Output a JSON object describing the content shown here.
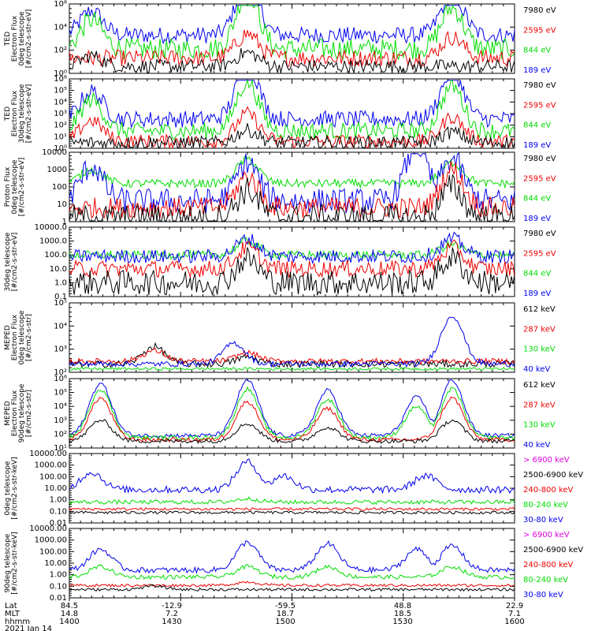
{
  "figure": {
    "footer": {
      "row_labels": [
        "Lat",
        "MLT",
        "hhmm"
      ],
      "columns": [
        {
          "lat": "84.5",
          "mlt": "14.8",
          "hhmm": "1400"
        },
        {
          "lat": "-12.9",
          "mlt": "7.2",
          "hhmm": "1430"
        },
        {
          "lat": "-59.5",
          "mlt": "18.7",
          "hhmm": "1500"
        },
        {
          "lat": "48.8",
          "mlt": "18.5",
          "hhmm": "1530"
        },
        {
          "lat": "22.9",
          "mlt": "7.1",
          "hhmm": "1600"
        }
      ],
      "date": "2021 Jan 14"
    }
  },
  "colors": {
    "black": "#000000",
    "red": "#ee0000",
    "green": "#00dd00",
    "blue": "#0000ee",
    "magenta": "#dd00dd"
  },
  "chart_data": [
    {
      "type": "line",
      "ylabel": [
        "TED",
        "Electron Flux",
        "0deg telescope",
        "[#/cm2-s-str-eV]"
      ],
      "y_ticks": [
        "10⁰",
        "10²",
        "10⁴",
        "10⁶"
      ],
      "ylim": [
        1,
        1000000
      ],
      "y_log": true,
      "xlim": [
        "1400",
        "1600"
      ],
      "legend": [
        {
          "label": "7980 eV",
          "color": "#000000"
        },
        {
          "label": "2595 eV",
          "color": "#ee0000"
        },
        {
          "label": "844 eV",
          "color": "#00dd00"
        },
        {
          "label": "189 eV",
          "color": "#0000ee"
        }
      ],
      "series": [
        {
          "color": "#0000ee",
          "floor": 0.55,
          "peaks": [
            [
              0.05,
              0.35
            ],
            [
              0.4,
              0.8
            ],
            [
              0.86,
              0.6
            ]
          ],
          "noise": 0.12
        },
        {
          "color": "#00dd00",
          "floor": 0.35,
          "peaks": [
            [
              0.05,
              0.42
            ],
            [
              0.4,
              0.85
            ],
            [
              0.86,
              0.6
            ]
          ],
          "noise": 0.15
        },
        {
          "color": "#ee0000",
          "floor": 0.22,
          "peaks": [
            [
              0.4,
              0.35
            ],
            [
              0.86,
              0.3
            ]
          ],
          "noise": 0.12
        },
        {
          "color": "#000000",
          "floor": 0.1,
          "peaks": [
            [
              0.05,
              0.15
            ],
            [
              0.4,
              0.2
            ]
          ],
          "noise": 0.1
        }
      ]
    },
    {
      "type": "line",
      "ylabel": [
        "TED",
        "Electron Flux",
        "30deg telescope",
        "[#/cm2-s-str-eV]"
      ],
      "y_ticks": [
        "10⁰",
        "10¹",
        "10²",
        "10³",
        "10⁴",
        "10⁵",
        "10⁶"
      ],
      "ylim": [
        1,
        1000000
      ],
      "y_log": true,
      "xlim": [
        "1400",
        "1600"
      ],
      "legend": [
        {
          "label": "7980 eV",
          "color": "#000000"
        },
        {
          "label": "2595 eV",
          "color": "#ee0000"
        },
        {
          "label": "844 eV",
          "color": "#00dd00"
        },
        {
          "label": "189 eV",
          "color": "#0000ee"
        }
      ],
      "series": [
        {
          "color": "#0000ee",
          "floor": 0.42,
          "peaks": [
            [
              0.05,
              0.4
            ],
            [
              0.4,
              0.8
            ],
            [
              0.86,
              0.7
            ]
          ],
          "noise": 0.12
        },
        {
          "color": "#00dd00",
          "floor": 0.25,
          "peaks": [
            [
              0.05,
              0.45
            ],
            [
              0.4,
              0.7
            ],
            [
              0.86,
              0.65
            ]
          ],
          "noise": 0.12
        },
        {
          "color": "#ee0000",
          "floor": 0.1,
          "peaks": [
            [
              0.05,
              0.3
            ],
            [
              0.4,
              0.4
            ],
            [
              0.86,
              0.35
            ]
          ],
          "noise": 0.1
        },
        {
          "color": "#000000",
          "floor": 0.08,
          "peaks": [
            [
              0.4,
              0.18
            ],
            [
              0.86,
              0.15
            ]
          ],
          "noise": 0.1
        }
      ]
    },
    {
      "type": "line",
      "ylabel": [
        "Proton Flux",
        "0deg telescope",
        "[#/cm2-s-str-eV]"
      ],
      "y_ticks": [
        "1",
        "10",
        "100",
        "1000",
        "10000"
      ],
      "ylim": [
        0.5,
        10000
      ],
      "y_log": true,
      "xlim": [
        "1400",
        "1600"
      ],
      "legend": [
        {
          "label": "7980 eV",
          "color": "#000000"
        },
        {
          "label": "2595 eV",
          "color": "#ee0000"
        },
        {
          "label": "844 eV",
          "color": "#00dd00"
        },
        {
          "label": "189 eV",
          "color": "#0000ee"
        }
      ],
      "series": [
        {
          "color": "#00dd00",
          "floor": 0.55,
          "peaks": [
            [
              0.05,
              0.2
            ],
            [
              0.4,
              0.35
            ],
            [
              0.86,
              0.3
            ]
          ],
          "noise": 0.06
        },
        {
          "color": "#0000ee",
          "floor": 0.3,
          "peaks": [
            [
              0.05,
              0.5
            ],
            [
              0.4,
              0.55
            ],
            [
              0.78,
              0.8
            ],
            [
              0.86,
              0.6
            ]
          ],
          "noise": 0.18
        },
        {
          "color": "#ee0000",
          "floor": 0.2,
          "peaks": [
            [
              0.4,
              0.45
            ],
            [
              0.86,
              0.55
            ]
          ],
          "noise": 0.15
        },
        {
          "color": "#000000",
          "floor": 0.05,
          "peaks": [
            [
              0.4,
              0.4
            ],
            [
              0.86,
              0.45
            ]
          ],
          "noise": 0.2
        }
      ]
    },
    {
      "type": "line",
      "ylabel": [
        "30deg telescope",
        "[#/cm2-s-str-eV]"
      ],
      "y_ticks": [
        "0.1",
        "1.0",
        "10.0",
        "100.0",
        "1000.0",
        "10000.0"
      ],
      "ylim": [
        0.1,
        10000
      ],
      "y_log": true,
      "xlim": [
        "1400",
        "1600"
      ],
      "legend": [
        {
          "label": "7980 eV",
          "color": "#000000"
        },
        {
          "label": "2595 eV",
          "color": "#ee0000"
        },
        {
          "label": "844 eV",
          "color": "#00dd00"
        },
        {
          "label": "189 eV",
          "color": "#0000ee"
        }
      ],
      "series": [
        {
          "color": "#00dd00",
          "floor": 0.6,
          "peaks": [
            [
              0.4,
              0.2
            ],
            [
              0.86,
              0.15
            ]
          ],
          "noise": 0.06
        },
        {
          "color": "#0000ee",
          "floor": 0.58,
          "peaks": [
            [
              0.4,
              0.25
            ],
            [
              0.86,
              0.25
            ]
          ],
          "noise": 0.1
        },
        {
          "color": "#ee0000",
          "floor": 0.4,
          "peaks": [
            [
              0.4,
              0.3
            ],
            [
              0.86,
              0.3
            ]
          ],
          "noise": 0.12
        },
        {
          "color": "#000000",
          "floor": 0.2,
          "peaks": [
            [
              0.4,
              0.35
            ],
            [
              0.86,
              0.35
            ]
          ],
          "noise": 0.18
        }
      ]
    },
    {
      "type": "line",
      "ylabel": [
        "MEPED",
        "Electron Flux",
        "0deg telescope",
        "[#/cm2-s-str]"
      ],
      "y_ticks": [
        "10²",
        "10³",
        "10⁴",
        "10⁵"
      ],
      "ylim": [
        100,
        100000
      ],
      "y_log": true,
      "xlim": [
        "1400",
        "1600"
      ],
      "legend": [
        {
          "label": "612 keV",
          "color": "#000000"
        },
        {
          "label": "287 keV",
          "color": "#ee0000"
        },
        {
          "label": "130 keV",
          "color": "#00dd00"
        },
        {
          "label": "40 keV",
          "color": "#0000ee"
        }
      ],
      "series": [
        {
          "color": "#000000",
          "floor": 0.12,
          "peaks": [
            [
              0.19,
              0.25
            ],
            [
              0.4,
              0.1
            ]
          ],
          "noise": 0.05
        },
        {
          "color": "#ee0000",
          "floor": 0.16,
          "peaks": [
            [
              0.19,
              0.15
            ],
            [
              0.4,
              0.12
            ]
          ],
          "noise": 0.04
        },
        {
          "color": "#0000ee",
          "floor": 0.12,
          "peaks": [
            [
              0.37,
              0.3
            ],
            [
              0.86,
              0.7
            ]
          ],
          "noise": 0.04
        },
        {
          "color": "#00dd00",
          "floor": 0.05,
          "peaks": [],
          "noise": 0.02
        }
      ]
    },
    {
      "type": "line",
      "ylabel": [
        "MEPED",
        "Electron Flux",
        "90deg telescope",
        "[#/cm2-s-str]"
      ],
      "y_ticks": [
        "10¹",
        "10²",
        "10³",
        "10⁴",
        "10⁵",
        "10⁶"
      ],
      "ylim": [
        10,
        1000000
      ],
      "y_log": true,
      "xlim": [
        "1400",
        "1600"
      ],
      "legend": [
        {
          "label": "612 keV",
          "color": "#000000"
        },
        {
          "label": "287 keV",
          "color": "#ee0000"
        },
        {
          "label": "130 keV",
          "color": "#00dd00"
        },
        {
          "label": "40 keV",
          "color": "#0000ee"
        }
      ],
      "series": [
        {
          "color": "#0000ee",
          "floor": 0.18,
          "peaks": [
            [
              0.07,
              0.75
            ],
            [
              0.4,
              0.8
            ],
            [
              0.58,
              0.65
            ],
            [
              0.78,
              0.55
            ],
            [
              0.86,
              0.8
            ]
          ],
          "noise": 0.03
        },
        {
          "color": "#00dd00",
          "floor": 0.15,
          "peaks": [
            [
              0.07,
              0.7
            ],
            [
              0.4,
              0.7
            ],
            [
              0.58,
              0.55
            ],
            [
              0.78,
              0.45
            ],
            [
              0.86,
              0.7
            ]
          ],
          "noise": 0.03
        },
        {
          "color": "#ee0000",
          "floor": 0.12,
          "peaks": [
            [
              0.07,
              0.6
            ],
            [
              0.4,
              0.55
            ],
            [
              0.58,
              0.45
            ],
            [
              0.86,
              0.6
            ]
          ],
          "noise": 0.03
        },
        {
          "color": "#000000",
          "floor": 0.1,
          "peaks": [
            [
              0.07,
              0.3
            ],
            [
              0.4,
              0.25
            ],
            [
              0.58,
              0.2
            ],
            [
              0.86,
              0.3
            ]
          ],
          "noise": 0.03
        }
      ]
    },
    {
      "type": "line",
      "ylabel": [
        "0deg telescope",
        "[#/cm2-s-str-keV]"
      ],
      "y_ticks": [
        "0.01",
        "0.10",
        "1.00",
        "10.00",
        "100.00",
        "1000.00",
        "10000.00"
      ],
      "ylim": [
        0.01,
        10000
      ],
      "y_log": true,
      "xlim": [
        "1400",
        "1600"
      ],
      "legend": [
        {
          "label": "> 6900 keV",
          "color": "#dd00dd"
        },
        {
          "label": "2500-6900 keV",
          "color": "#000000"
        },
        {
          "label": "240-800 keV",
          "color": "#ee0000"
        },
        {
          "label": "80-240 keV",
          "color": "#00dd00"
        },
        {
          "label": "30-80 keV",
          "color": "#0000ee"
        }
      ],
      "series": [
        {
          "color": "#0000ee",
          "floor": 0.48,
          "peaks": [
            [
              0.05,
              0.25
            ],
            [
              0.4,
              0.4
            ],
            [
              0.48,
              0.2
            ],
            [
              0.8,
              0.2
            ]
          ],
          "noise": 0.05
        },
        {
          "color": "#00dd00",
          "floor": 0.3,
          "peaks": [
            [
              0.4,
              0.05
            ]
          ],
          "noise": 0.03
        },
        {
          "color": "#ee0000",
          "floor": 0.2,
          "peaks": [],
          "noise": 0.02
        },
        {
          "color": "#000000",
          "floor": 0.15,
          "peaks": [],
          "noise": 0.02
        }
      ]
    },
    {
      "type": "line",
      "ylabel": [
        "90deg telescope",
        "[#/cm2-s-str-keV]"
      ],
      "y_ticks": [
        "0.01",
        "0.10",
        "1.00",
        "10.00",
        "100.00",
        "1000.00",
        "10000.00"
      ],
      "ylim": [
        0.01,
        10000
      ],
      "y_log": true,
      "xlim": [
        "1400",
        "1600"
      ],
      "legend": [
        {
          "label": "> 6900 keV",
          "color": "#dd00dd"
        },
        {
          "label": "2500-6900 keV",
          "color": "#000000"
        },
        {
          "label": "240-800 keV",
          "color": "#ee0000"
        },
        {
          "label": "80-240 keV",
          "color": "#00dd00"
        },
        {
          "label": "30-80 keV",
          "color": "#0000ee"
        }
      ],
      "series": [
        {
          "color": "#0000ee",
          "floor": 0.4,
          "peaks": [
            [
              0.07,
              0.3
            ],
            [
              0.4,
              0.4
            ],
            [
              0.58,
              0.38
            ],
            [
              0.78,
              0.3
            ],
            [
              0.86,
              0.35
            ]
          ],
          "noise": 0.04
        },
        {
          "color": "#00dd00",
          "floor": 0.3,
          "peaks": [
            [
              0.07,
              0.15
            ],
            [
              0.4,
              0.15
            ],
            [
              0.58,
              0.15
            ],
            [
              0.86,
              0.15
            ]
          ],
          "noise": 0.03
        },
        {
          "color": "#ee0000",
          "floor": 0.18,
          "peaks": [
            [
              0.4,
              0.05
            ]
          ],
          "noise": 0.02
        },
        {
          "color": "#000000",
          "floor": 0.12,
          "peaks": [
            [
              0.19,
              0.05
            ]
          ],
          "noise": 0.02
        }
      ]
    }
  ]
}
